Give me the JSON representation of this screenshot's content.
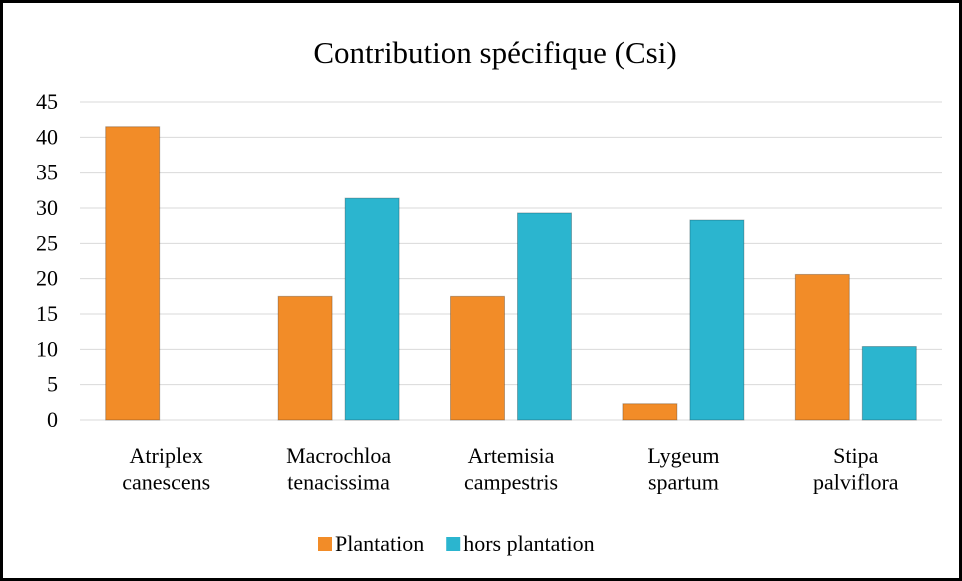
{
  "chart_data": {
    "type": "bar",
    "title": "Contribution spécifique  (Csi)",
    "categories": [
      "Atriplex\ncanescens",
      "Macrochloa\ntenacissima",
      "Artemisia\ncampestris",
      "Lygeum\nspartum",
      "Stipa\npalviflora"
    ],
    "series": [
      {
        "name": "Plantation",
        "color": "#f28c28",
        "values": [
          41.5,
          17.5,
          17.5,
          2.3,
          20.6
        ]
      },
      {
        "name": "hors plantation",
        "color": "#2bb5cf",
        "values": [
          null,
          31.4,
          29.3,
          28.3,
          10.4
        ]
      }
    ],
    "ylim": [
      0,
      45
    ],
    "yticks": [
      0,
      5,
      10,
      15,
      20,
      25,
      30,
      35,
      40,
      45
    ],
    "grid": true,
    "legend": "bottom"
  }
}
